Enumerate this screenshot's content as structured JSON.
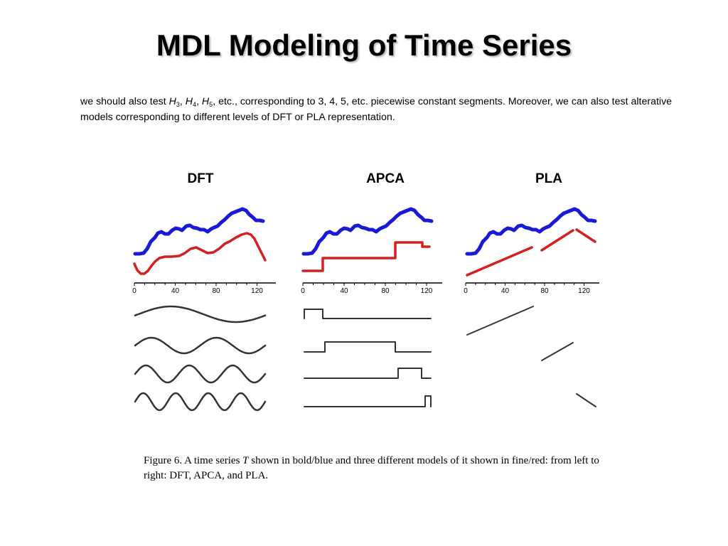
{
  "title": "MDL Modeling of Time Series",
  "body": {
    "pre": "we should also test ",
    "h_symbol": "H",
    "sub3": "3",
    "sub4": "4",
    "sub5": "5",
    "sep": ", ",
    "post": ", etc., corresponding to 3, 4, 5, etc. piecewise constant segments. Moreover, we can also test alterative models corresponding to different levels of DFT or PLA representation."
  },
  "panels": {
    "dft_label": "DFT",
    "apca_label": "APCA",
    "pla_label": "PLA"
  },
  "axis_ticks": [
    "0",
    "40",
    "80",
    "120"
  ],
  "caption": {
    "prefix": "Figure 6. A time series ",
    "symbol": "T",
    "suffix": " shown in bold/blue and three different models of it shown in fine/red: from left to right: DFT, APCA, and PLA."
  },
  "colors": {
    "series": "#1a1ad6",
    "model": "#d42020",
    "basis": "#333333",
    "axis": "#000000"
  }
}
